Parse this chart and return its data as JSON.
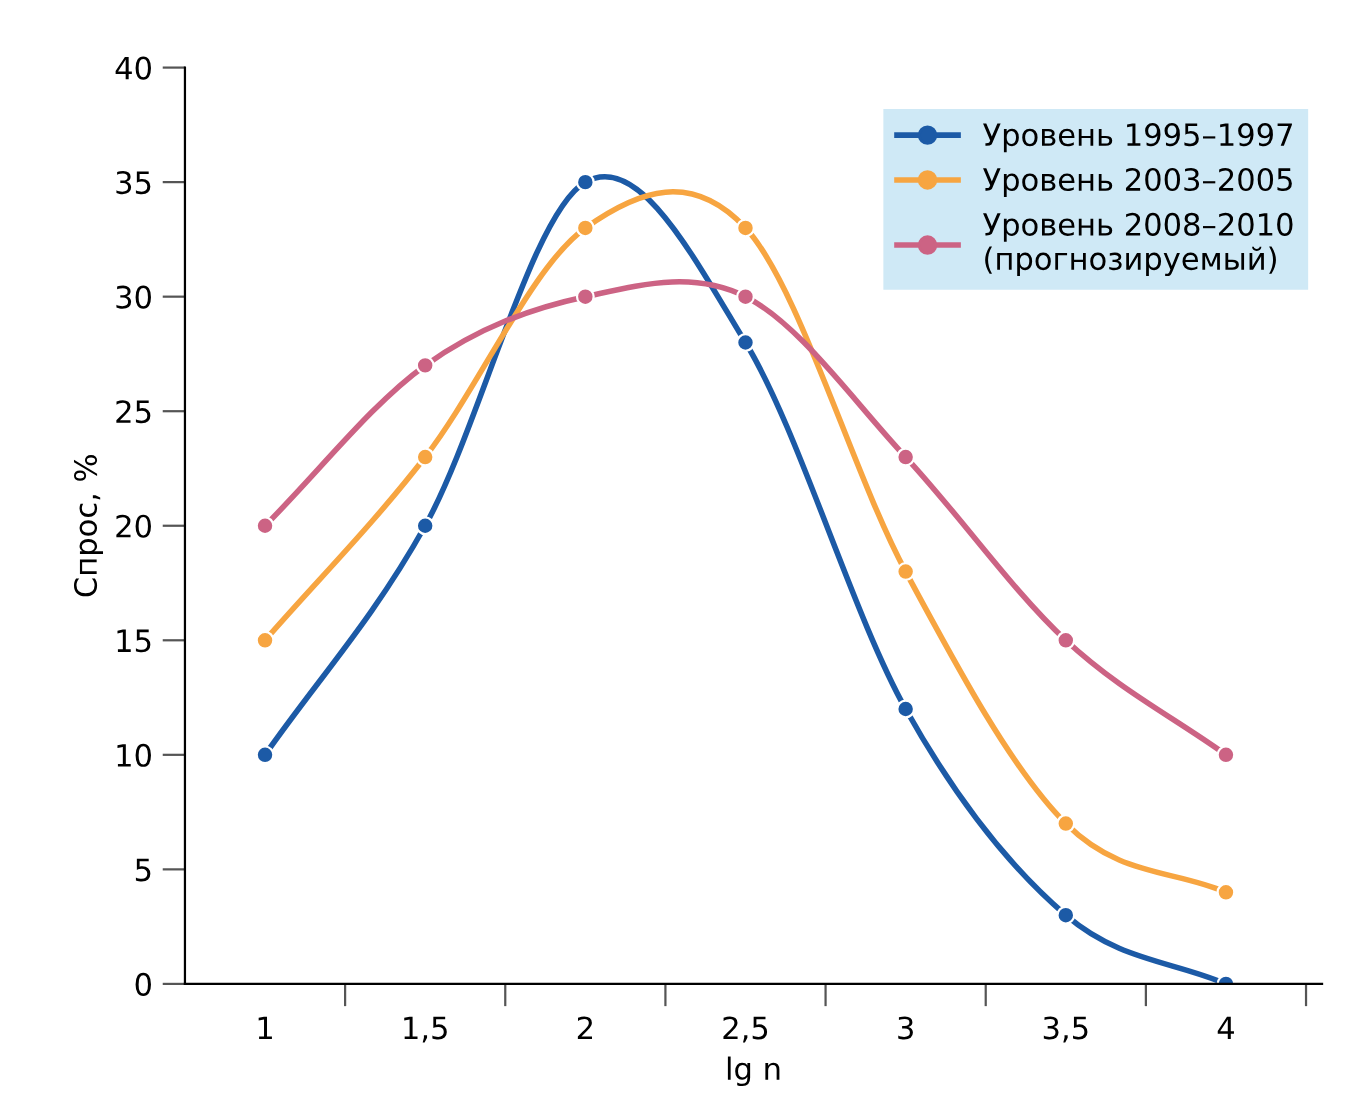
{
  "chart_data": {
    "type": "line",
    "xlabel": "lg n",
    "ylabel": "Спрос, %",
    "x": [
      1,
      1.5,
      2,
      2.5,
      3,
      3.5,
      4
    ],
    "series": [
      {
        "name": "Уровень 1995–1997",
        "color": "#1c5aa6",
        "values": [
          10,
          20,
          35,
          28,
          12,
          3,
          0
        ]
      },
      {
        "name": "Уровень 2003–2005",
        "color": "#f7a541",
        "values": [
          15,
          23,
          33,
          33,
          18,
          7,
          4
        ]
      },
      {
        "name": "Уровень 2008–2010\n(прогнозируемый)",
        "color": "#cc6384",
        "values": [
          20,
          27,
          30,
          30,
          23,
          15,
          10
        ]
      }
    ],
    "xlim": [
      0.75,
      4.3
    ],
    "xticks": [
      1,
      {
        "value": 1.25,
        "label": null
      },
      {
        "value": 1.5,
        "label": "1,5"
      },
      {
        "value": 1.75,
        "label": null
      },
      2,
      {
        "value": 2.25,
        "label": null
      },
      {
        "value": 2.5,
        "label": "2,5"
      },
      {
        "value": 2.75,
        "label": null
      },
      3,
      {
        "value": 3.25,
        "label": null
      },
      {
        "value": 3.5,
        "label": "3,5"
      },
      {
        "value": 3.75,
        "label": null
      },
      4,
      {
        "value": 4.25,
        "label": null
      }
    ],
    "ylim": [
      0,
      40
    ],
    "yticks": [
      0,
      5,
      10,
      15,
      20,
      25,
      30,
      35,
      40
    ],
    "grid": false,
    "legend": "top right",
    "marker": "circle",
    "line_style": "solid"
  }
}
